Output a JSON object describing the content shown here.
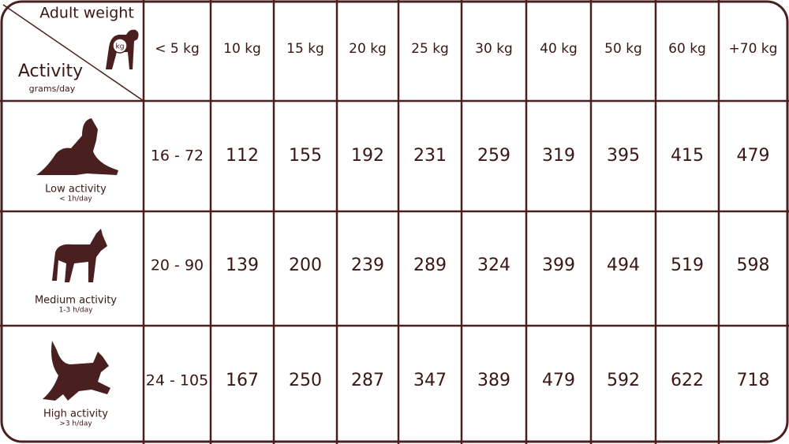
{
  "header": {
    "weight_label": "Adult weight",
    "activity_label": "Activity",
    "unit_label": "grams/day",
    "tag": "kg",
    "columns": [
      "< 5 kg",
      "10 kg",
      "15 kg",
      "20 kg",
      "25 kg",
      "30 kg",
      "40 kg",
      "50 kg",
      "60 kg",
      "+70 kg"
    ]
  },
  "rows": [
    {
      "label": "Low activity",
      "sublabel": "< 1h/day",
      "values": [
        "16 - 72",
        112,
        155,
        192,
        231,
        259,
        319,
        395,
        415,
        479
      ]
    },
    {
      "label": "Medium activity",
      "sublabel": "1-3 h/day",
      "values": [
        "20 - 90",
        139,
        200,
        239,
        289,
        324,
        399,
        494,
        519,
        598
      ]
    },
    {
      "label": "High activity",
      "sublabel": ">3 h/day",
      "values": [
        "24 - 105",
        167,
        250,
        287,
        347,
        389,
        479,
        592,
        622,
        718
      ]
    }
  ]
}
